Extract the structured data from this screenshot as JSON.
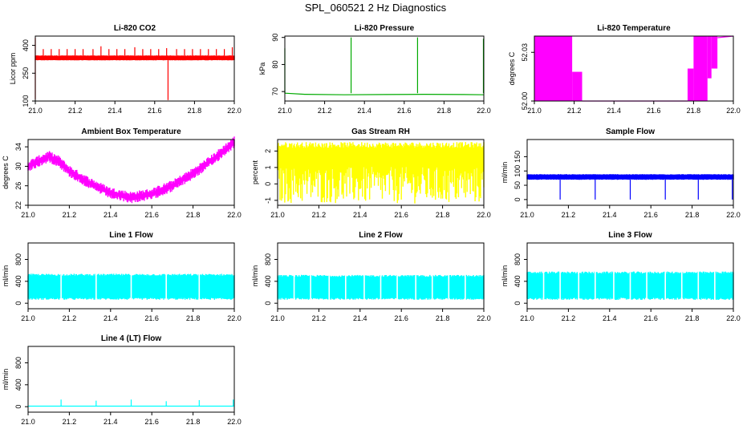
{
  "figure_title": "SPL_060521  2 Hz Diagnostics",
  "chart_data": [
    {
      "type": "line",
      "title": "Li-820 CO2",
      "ylabel": "Licor ppm",
      "color": "#ff0000",
      "xlim": [
        21.0,
        22.0
      ],
      "ylim": [
        100,
        450
      ],
      "xticks": [
        "21.0",
        "21.2",
        "21.4",
        "21.6",
        "21.8",
        "22.0"
      ],
      "yticks": [
        100,
        250,
        400
      ],
      "pattern": "band",
      "band": [
        320,
        345
      ],
      "spikes": [
        [
          21.0,
          440,
          "up"
        ],
        [
          21.0,
          110,
          "down"
        ],
        [
          21.04,
          380,
          "up"
        ],
        [
          21.08,
          380,
          "up"
        ],
        [
          21.12,
          380,
          "up"
        ],
        [
          21.16,
          380,
          "up"
        ],
        [
          21.2,
          380,
          "up"
        ],
        [
          21.24,
          380,
          "up"
        ],
        [
          21.29,
          380,
          "up"
        ],
        [
          21.33,
          395,
          "up"
        ],
        [
          21.37,
          380,
          "up"
        ],
        [
          21.41,
          380,
          "up"
        ],
        [
          21.45,
          380,
          "up"
        ],
        [
          21.5,
          390,
          "up"
        ],
        [
          21.54,
          380,
          "up"
        ],
        [
          21.58,
          380,
          "up"
        ],
        [
          21.62,
          380,
          "up"
        ],
        [
          21.66,
          385,
          "up"
        ],
        [
          21.667,
          105,
          "down"
        ],
        [
          21.71,
          380,
          "up"
        ],
        [
          21.75,
          380,
          "up"
        ],
        [
          21.79,
          380,
          "up"
        ],
        [
          21.83,
          380,
          "up"
        ],
        [
          21.87,
          380,
          "up"
        ],
        [
          21.91,
          380,
          "up"
        ],
        [
          21.95,
          380,
          "up"
        ],
        [
          21.99,
          390,
          "up"
        ]
      ]
    },
    {
      "type": "line",
      "title": "Li-820 Pressure",
      "ylabel": "kPa",
      "color": "#00aa00",
      "xlim": [
        21.0,
        22.0
      ],
      "ylim": [
        66.5,
        90.5
      ],
      "xticks": [
        "21.0",
        "21.2",
        "21.4",
        "21.6",
        "21.8",
        "22.0"
      ],
      "yticks": [
        70,
        80,
        90
      ],
      "pattern": "line",
      "series": [
        [
          21.0,
          69.4
        ],
        [
          21.1,
          69.0
        ],
        [
          21.3,
          68.8
        ],
        [
          21.5,
          68.9
        ],
        [
          21.7,
          69.0
        ],
        [
          21.9,
          68.9
        ],
        [
          22.0,
          68.8
        ]
      ],
      "spikes": [
        [
          21.0,
          86,
          "up"
        ],
        [
          21.333,
          90,
          "up"
        ],
        [
          21.667,
          90,
          "up"
        ],
        [
          21.998,
          89.5,
          "up"
        ]
      ]
    },
    {
      "type": "area",
      "title": "Li-820 Temperature",
      "ylabel": "degrees C",
      "color": "#ff00ff",
      "xlim": [
        21.0,
        22.0
      ],
      "ylim": [
        52.0,
        52.04
      ],
      "xticks": [
        "21.0",
        "21.2",
        "21.4",
        "21.6",
        "21.8",
        "22.0"
      ],
      "yticks": [
        "52.00",
        "52.03"
      ],
      "pattern": "blocks",
      "blocks": [
        [
          21.0,
          21.19,
          52.0,
          52.04
        ],
        [
          21.19,
          21.24,
          52.0,
          52.018
        ],
        [
          21.77,
          21.8,
          52.0,
          52.02
        ],
        [
          21.8,
          21.87,
          52.0,
          52.04
        ],
        [
          21.87,
          21.89,
          52.014,
          52.04
        ],
        [
          21.89,
          21.92,
          52.02,
          52.04
        ]
      ],
      "series": [
        [
          21.24,
          52.0
        ],
        [
          21.77,
          52.0
        ]
      ],
      "series2": [
        [
          21.92,
          52.039
        ],
        [
          22.0,
          52.04
        ]
      ]
    },
    {
      "type": "line",
      "title": "Ambient Box Temperature",
      "ylabel": "degrees C",
      "color": "#ff00ff",
      "xlim": [
        21.0,
        22.0
      ],
      "ylim": [
        22,
        35.5
      ],
      "xticks": [
        "21.0",
        "21.2",
        "21.4",
        "21.6",
        "21.8",
        "22.0"
      ],
      "yticks": [
        22,
        26,
        30,
        34
      ],
      "pattern": "noisy_line",
      "noise": 0.8,
      "series": [
        [
          21.0,
          30.0
        ],
        [
          21.05,
          31.0
        ],
        [
          21.1,
          32.0
        ],
        [
          21.15,
          31.0
        ],
        [
          21.2,
          29.0
        ],
        [
          21.3,
          26.5
        ],
        [
          21.4,
          24.5
        ],
        [
          21.5,
          23.6
        ],
        [
          21.6,
          24.3
        ],
        [
          21.7,
          26.0
        ],
        [
          21.8,
          28.5
        ],
        [
          21.9,
          31.5
        ],
        [
          22.0,
          35.0
        ]
      ]
    },
    {
      "type": "area",
      "title": "Gas Stream RH",
      "ylabel": "percent",
      "color": "#ffff00",
      "xlim": [
        21.0,
        22.0
      ],
      "ylim": [
        -1.3,
        2.7
      ],
      "xticks": [
        "21.0",
        "21.2",
        "21.4",
        "21.6",
        "21.8",
        "22.0"
      ],
      "yticks": [
        -1,
        0,
        1,
        2
      ],
      "pattern": "band",
      "band": [
        0.2,
        2.2
      ],
      "noise": [
        -1.2,
        2.55
      ]
    },
    {
      "type": "line",
      "title": "Sample Flow",
      "ylabel": "ml/min",
      "color": "#0000ff",
      "xlim": [
        21.0,
        22.0
      ],
      "ylim": [
        -20,
        210
      ],
      "xticks": [
        "21.0",
        "21.2",
        "21.4",
        "21.6",
        "21.8",
        "22.0"
      ],
      "yticks": [
        0,
        50,
        100,
        150
      ],
      "pattern": "band",
      "band": [
        70,
        88
      ],
      "spikes": [
        [
          21.16,
          0,
          "down"
        ],
        [
          21.33,
          0,
          "down"
        ],
        [
          21.5,
          0,
          "down"
        ],
        [
          21.67,
          0,
          "down"
        ],
        [
          21.83,
          0,
          "down"
        ],
        [
          21.995,
          0,
          "down"
        ]
      ]
    },
    {
      "type": "area",
      "title": "Line 1 Flow",
      "ylabel": "ml/min",
      "color": "#00ffff",
      "xlim": [
        21.0,
        22.0
      ],
      "ylim": [
        -100,
        1100
      ],
      "xticks": [
        "21.0",
        "21.2",
        "21.4",
        "21.6",
        "21.8",
        "22.0"
      ],
      "yticks": [
        0,
        400,
        800
      ],
      "pattern": "band",
      "band": [
        80,
        520
      ],
      "gaps": [
        21.16,
        21.33,
        21.5,
        21.67,
        21.83
      ]
    },
    {
      "type": "area",
      "title": "Line 2 Flow",
      "ylabel": "ml/min",
      "color": "#00ffff",
      "xlim": [
        21.0,
        22.0
      ],
      "ylim": [
        -100,
        1100
      ],
      "xticks": [
        "21.0",
        "21.2",
        "21.4",
        "21.6",
        "21.8",
        "22.0"
      ],
      "yticks": [
        0,
        400,
        800
      ],
      "pattern": "band",
      "band": [
        80,
        500
      ],
      "gaps": [
        21.08,
        21.16,
        21.25,
        21.33,
        21.42,
        21.5,
        21.58,
        21.67,
        21.75,
        21.83,
        21.91
      ]
    },
    {
      "type": "area",
      "title": "Line 3 Flow",
      "ylabel": "ml/min",
      "color": "#00ffff",
      "xlim": [
        21.0,
        22.0
      ],
      "ylim": [
        -100,
        1100
      ],
      "xticks": [
        "21.0",
        "21.2",
        "21.4",
        "21.6",
        "21.8",
        "22.0"
      ],
      "yticks": [
        0,
        400,
        800
      ],
      "pattern": "band",
      "band": [
        80,
        560
      ],
      "gaps": [
        21.08,
        21.16,
        21.25,
        21.33,
        21.42,
        21.5,
        21.58,
        21.67,
        21.75,
        21.83,
        21.91
      ]
    },
    {
      "type": "line",
      "title": "Line 4 (LT) Flow",
      "ylabel": "ml/min",
      "color": "#00ffff",
      "xlim": [
        21.0,
        22.0
      ],
      "ylim": [
        -100,
        1100
      ],
      "xticks": [
        "21.0",
        "21.2",
        "21.4",
        "21.6",
        "21.8",
        "22.0"
      ],
      "yticks": [
        0,
        400,
        800
      ],
      "pattern": "line",
      "series": [
        [
          21.0,
          10
        ],
        [
          22.0,
          10
        ]
      ],
      "spikes": [
        [
          21.16,
          130,
          "up"
        ],
        [
          21.33,
          110,
          "up"
        ],
        [
          21.5,
          130,
          "up"
        ],
        [
          21.67,
          100,
          "up"
        ],
        [
          21.83,
          120,
          "up"
        ],
        [
          21.995,
          130,
          "up"
        ]
      ]
    }
  ]
}
